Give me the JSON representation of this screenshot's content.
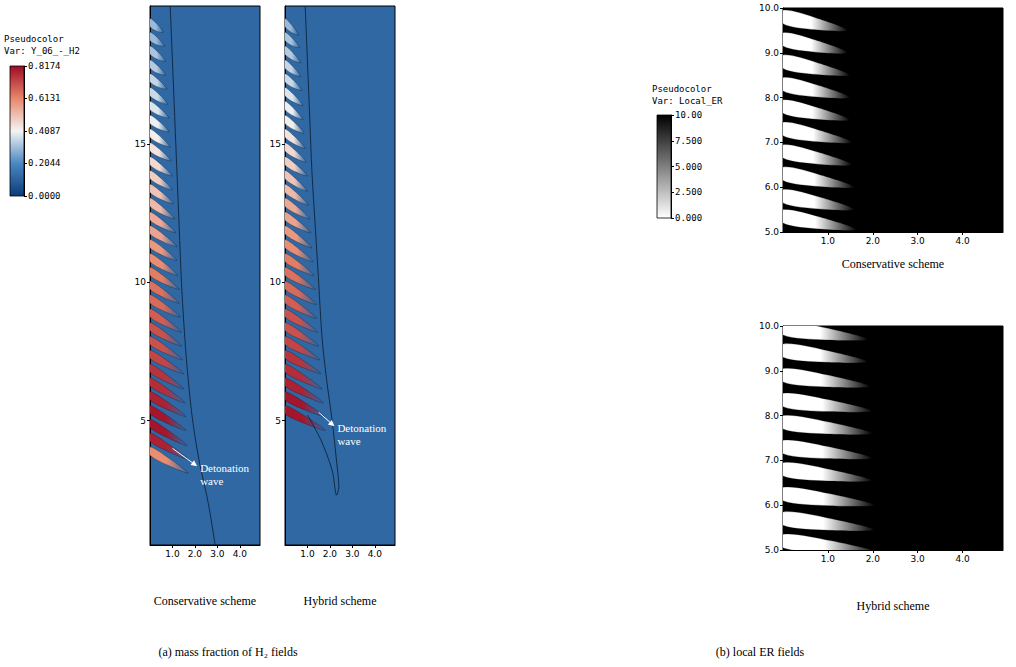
{
  "chart_data": [
    {
      "type": "field",
      "title": "(a) mass fraction of H₂ fields",
      "colorbar": {
        "title": [
          "Pseudocolor",
          "Var: Y_06_-_H2"
        ],
        "range": [
          0,
          0.8174
        ],
        "ticks": [
          {
            "value": 0,
            "label": "0.0000"
          },
          0.2044,
          0.4087,
          0.6131,
          0.8174
        ]
      },
      "panels": [
        {
          "title": "Conservative scheme",
          "xlim": [
            0,
            4.9
          ],
          "xticks": [
            {
              "value": 1,
              "label": "1.0"
            },
            {
              "value": 2,
              "label": "2.0"
            },
            {
              "value": 3,
              "label": "3.0"
            },
            {
              "value": 4,
              "label": "4.0"
            }
          ],
          "ylim": [
            0.5,
            20
          ],
          "yticks": [
            5,
            10,
            15
          ],
          "background": 0.12,
          "streaks": {
            "y": [
              3.9,
              4.4,
              4.9,
              5.4,
              5.9,
              6.4,
              6.9,
              7.4,
              7.9,
              8.4,
              8.9,
              9.4,
              9.9,
              10.4,
              10.9,
              11.4,
              11.9,
              12.4,
              12.9,
              13.4,
              13.9,
              14.4,
              14.9,
              15.4,
              15.9,
              16.4,
              16.9,
              17.4,
              17.9,
              18.4,
              18.9,
              19.4
            ],
            "y_end": [
              3.1,
              3.6,
              4.1,
              4.65,
              5.15,
              5.65,
              6.15,
              6.7,
              7.2,
              7.7,
              8.2,
              8.75,
              9.25,
              9.75,
              10.25,
              10.8,
              11.3,
              11.8,
              12.3,
              12.85,
              13.35,
              13.85,
              14.4,
              14.9,
              15.45,
              15.95,
              16.45,
              17.0,
              17.5,
              18.0,
              18.55,
              19.05
            ],
            "x_end": [
              1.7,
              1.7,
              1.65,
              1.6,
              1.6,
              1.55,
              1.5,
              1.5,
              1.45,
              1.4,
              1.4,
              1.35,
              1.3,
              1.3,
              1.25,
              1.2,
              1.2,
              1.15,
              1.1,
              1.05,
              1.0,
              1.0,
              0.95,
              0.9,
              0.85,
              0.85,
              0.8,
              0.75,
              0.7,
              0.7,
              0.65,
              0.6
            ],
            "peak": [
              0.6,
              0.78,
              0.8,
              0.8,
              0.78,
              0.76,
              0.75,
              0.72,
              0.7,
              0.7,
              0.68,
              0.66,
              0.65,
              0.63,
              0.6,
              0.58,
              0.56,
              0.55,
              0.52,
              0.5,
              0.48,
              0.46,
              0.44,
              0.42,
              0.4,
              0.38,
              0.36,
              0.35,
              0.33,
              0.32,
              0.3,
              0.3
            ]
          },
          "contour": {
            "x": [
              2.9,
              2.6,
              2.2,
              1.9,
              1.7,
              1.55,
              1.4,
              1.3,
              1.2,
              1.1,
              1.0,
              0.9
            ],
            "y": [
              0.5,
              2,
              3.5,
              5,
              6.5,
              8,
              10,
              12,
              14,
              16,
              18,
              20
            ]
          },
          "annotation": {
            "text": "Detonation wave",
            "xytext": [
              1.0,
              4.0
            ],
            "xy": [
              2.1,
              3.35
            ]
          }
        },
        {
          "title": "Hybrid scheme",
          "xlim": [
            0,
            4.9
          ],
          "xticks": [
            {
              "value": 1,
              "label": "1.0"
            },
            {
              "value": 2,
              "label": "2.0"
            },
            {
              "value": 3,
              "label": "3.0"
            },
            {
              "value": 4,
              "label": "4.0"
            }
          ],
          "ylim": [
            0.5,
            20
          ],
          "yticks": [
            5,
            10,
            15
          ],
          "background": 0.12,
          "streaks": {
            "y": [
              5.4,
              5.9,
              6.4,
              6.9,
              7.4,
              7.9,
              8.4,
              8.9,
              9.4,
              9.9,
              10.4,
              10.9,
              11.4,
              11.9,
              12.4,
              12.9,
              13.4,
              13.9,
              14.4,
              14.9,
              15.4,
              15.9,
              16.4,
              16.9,
              17.4,
              17.9,
              18.4,
              18.9,
              19.4
            ],
            "y_end": [
              4.65,
              5.15,
              5.65,
              6.15,
              6.7,
              7.2,
              7.7,
              8.2,
              8.7,
              9.2,
              9.75,
              10.25,
              10.75,
              11.25,
              11.8,
              12.3,
              12.8,
              13.3,
              13.85,
              14.35,
              14.85,
              15.4,
              15.9,
              16.4,
              16.95,
              17.45,
              17.95,
              18.5,
              18.95
            ],
            "x_end": [
              1.8,
              1.75,
              1.7,
              1.65,
              1.6,
              1.55,
              1.5,
              1.45,
              1.4,
              1.4,
              1.35,
              1.3,
              1.25,
              1.2,
              1.15,
              1.1,
              1.05,
              1.0,
              1.0,
              0.95,
              0.9,
              0.85,
              0.8,
              0.8,
              0.75,
              0.7,
              0.7,
              0.65,
              0.6
            ],
            "peak": [
              0.8,
              0.8,
              0.78,
              0.76,
              0.75,
              0.72,
              0.7,
              0.7,
              0.68,
              0.66,
              0.65,
              0.63,
              0.6,
              0.58,
              0.56,
              0.55,
              0.52,
              0.5,
              0.48,
              0.46,
              0.44,
              0.42,
              0.4,
              0.38,
              0.36,
              0.35,
              0.33,
              0.32,
              0.3
            ]
          },
          "contour": {
            "x": [
              1.0,
              1.6,
              2.1,
              2.3,
              2.4,
              2.3,
              2.1,
              1.85,
              1.65,
              1.5,
              1.35,
              1.2,
              1.1,
              1.0,
              0.9
            ],
            "y": [
              5.2,
              4.3,
              3.2,
              2.3,
              2.6,
              3.5,
              5,
              6.5,
              8,
              10,
              12,
              14,
              16,
              18,
              20
            ]
          },
          "annotation": {
            "text": "Detonation wave",
            "xytext": [
              1.5,
              5.3
            ],
            "xy": [
              2.2,
              4.8
            ]
          }
        }
      ]
    },
    {
      "type": "field",
      "title": "(b) local ER fields",
      "colorbar": {
        "title": [
          "Pseudocolor",
          "Var: Local_ER"
        ],
        "range": [
          0,
          10
        ],
        "ticks": [
          {
            "value": 0,
            "label": "0.000"
          },
          {
            "value": 2.5,
            "label": "2.500"
          },
          {
            "value": 5,
            "label": "5.000"
          },
          {
            "value": 7.5,
            "label": "7.500"
          },
          {
            "value": 10,
            "label": "10.00"
          }
        ]
      },
      "panels": [
        {
          "title": "Conservative scheme",
          "xlim": [
            0,
            4.9
          ],
          "xticks": [
            {
              "value": 1,
              "label": "1.0"
            },
            {
              "value": 2,
              "label": "2.0"
            },
            {
              "value": 3,
              "label": "3.0"
            },
            {
              "value": 4,
              "label": "4.0"
            }
          ],
          "ylim": [
            5,
            10
          ],
          "yticks": [
            {
              "value": 5,
              "label": "5.0"
            },
            {
              "value": 6,
              "label": "6.0"
            },
            {
              "value": 7,
              "label": "7.0"
            },
            {
              "value": 8,
              "label": "8.0"
            },
            {
              "value": 9,
              "label": "9.0"
            },
            {
              "value": 10,
              "label": "10.0"
            }
          ],
          "background": 10,
          "streaks": {
            "y": [
              9.8,
              9.3,
              8.8,
              8.3,
              7.8,
              7.3,
              6.8,
              6.3,
              5.8,
              5.35
            ],
            "y_end": [
              9.5,
              9.0,
              8.5,
              8.0,
              7.5,
              7.0,
              6.5,
              6.0,
              5.5,
              5.05
            ],
            "x_end": [
              1.45,
              1.45,
              1.5,
              1.5,
              1.5,
              1.55,
              1.55,
              1.6,
              1.6,
              1.65
            ],
            "peak": [
              0,
              0,
              0,
              0,
              0,
              0,
              0,
              0,
              0,
              0
            ]
          }
        },
        {
          "title": "Hybrid scheme",
          "xlim": [
            0,
            4.9
          ],
          "xticks": [
            {
              "value": 1,
              "label": "1.0"
            },
            {
              "value": 2,
              "label": "2.0"
            },
            {
              "value": 3,
              "label": "3.0"
            },
            {
              "value": 4,
              "label": "4.0"
            }
          ],
          "ylim": [
            5,
            10
          ],
          "yticks": [
            {
              "value": 5,
              "label": "5.0"
            },
            {
              "value": 6,
              "label": "6.0"
            },
            {
              "value": 7,
              "label": "7.0"
            },
            {
              "value": 8,
              "label": "8.0"
            },
            {
              "value": 9,
              "label": "9.0"
            },
            {
              "value": 10,
              "label": "10.0"
            }
          ],
          "background": 10,
          "streaks": {
            "y": [
              9.95,
              9.45,
              8.9,
              8.35,
              7.85,
              7.3,
              6.8,
              6.25,
              5.7,
              5.2
            ],
            "y_end": [
              9.7,
              9.2,
              8.65,
              8.1,
              7.6,
              7.05,
              6.55,
              6.0,
              5.45,
              4.95
            ],
            "x_end": [
              1.9,
              1.9,
              1.95,
              2.0,
              2.0,
              2.0,
              2.0,
              2.05,
              2.05,
              2.1
            ],
            "peak": [
              0,
              0,
              0,
              0,
              0,
              0,
              0,
              0,
              0,
              0
            ]
          }
        }
      ]
    }
  ]
}
